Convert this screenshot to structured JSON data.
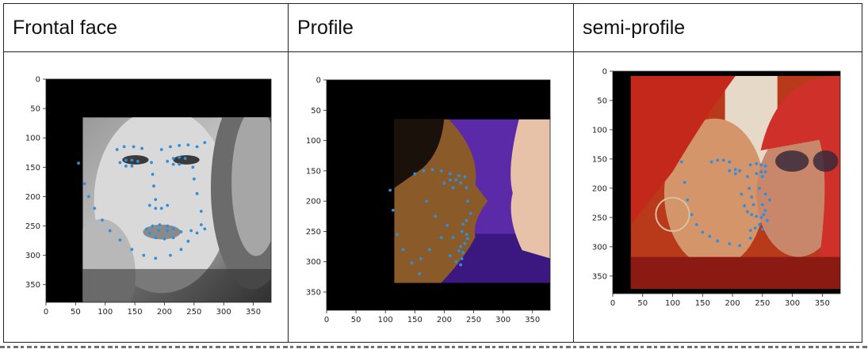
{
  "headers": [
    "Frontal face",
    "Profile",
    "semi-profile"
  ],
  "plots": [
    {
      "name": "frontal-face-plot",
      "ticks": [
        0,
        50,
        100,
        150,
        200,
        250,
        300,
        350
      ],
      "xlim": [
        0,
        380
      ],
      "ylim": [
        0,
        380
      ],
      "photo": {
        "x0": 62,
        "x1": 380,
        "y0": 65,
        "y1": 380
      },
      "photo_style": "grayscale",
      "landmarks": [
        [
          55,
          143
        ],
        [
          65,
          178
        ],
        [
          72,
          200
        ],
        [
          82,
          220
        ],
        [
          95,
          240
        ],
        [
          108,
          258
        ],
        [
          125,
          274
        ],
        [
          145,
          290
        ],
        [
          165,
          300
        ],
        [
          185,
          305
        ],
        [
          210,
          300
        ],
        [
          228,
          290
        ],
        [
          240,
          276
        ],
        [
          120,
          120
        ],
        [
          132,
          115
        ],
        [
          148,
          115
        ],
        [
          162,
          118
        ],
        [
          195,
          120
        ],
        [
          210,
          115
        ],
        [
          225,
          113
        ],
        [
          240,
          112
        ],
        [
          255,
          115
        ],
        [
          268,
          108
        ],
        [
          125,
          142
        ],
        [
          135,
          138
        ],
        [
          145,
          138
        ],
        [
          155,
          140
        ],
        [
          145,
          148
        ],
        [
          135,
          148
        ],
        [
          205,
          140
        ],
        [
          215,
          135
        ],
        [
          225,
          133
        ],
        [
          235,
          135
        ],
        [
          225,
          145
        ],
        [
          215,
          145
        ],
        [
          178,
          142
        ],
        [
          180,
          162
        ],
        [
          182,
          182
        ],
        [
          185,
          205
        ],
        [
          175,
          215
        ],
        [
          185,
          220
        ],
        [
          195,
          220
        ],
        [
          205,
          215
        ],
        [
          170,
          255
        ],
        [
          180,
          250
        ],
        [
          192,
          248
        ],
        [
          205,
          250
        ],
        [
          215,
          255
        ],
        [
          228,
          260
        ],
        [
          215,
          270
        ],
        [
          200,
          272
        ],
        [
          185,
          270
        ],
        [
          175,
          262
        ],
        [
          190,
          258
        ],
        [
          205,
          258
        ],
        [
          248,
          150
        ],
        [
          250,
          170
        ],
        [
          255,
          195
        ],
        [
          262,
          225
        ],
        [
          268,
          255
        ],
        [
          245,
          258
        ],
        [
          255,
          262
        ],
        [
          262,
          248
        ]
      ]
    },
    {
      "name": "profile-plot",
      "ticks": [
        0,
        50,
        100,
        150,
        200,
        250,
        300,
        350
      ],
      "xlim": [
        0,
        380
      ],
      "ylim": [
        0,
        380
      ],
      "photo": {
        "x0": 115,
        "x1": 380,
        "y0": 65,
        "y1": 335
      },
      "photo_style": "profile",
      "landmarks": [
        [
          108,
          182
        ],
        [
          113,
          215
        ],
        [
          120,
          255
        ],
        [
          130,
          280
        ],
        [
          145,
          302
        ],
        [
          158,
          320
        ],
        [
          150,
          155
        ],
        [
          165,
          150
        ],
        [
          180,
          148
        ],
        [
          195,
          150
        ],
        [
          210,
          155
        ],
        [
          225,
          158
        ],
        [
          200,
          170
        ],
        [
          210,
          165
        ],
        [
          220,
          165
        ],
        [
          228,
          170
        ],
        [
          215,
          178
        ],
        [
          235,
          160
        ],
        [
          238,
          178
        ],
        [
          240,
          200
        ],
        [
          245,
          220
        ],
        [
          238,
          232
        ],
        [
          232,
          238
        ],
        [
          230,
          250
        ],
        [
          238,
          255
        ],
        [
          240,
          262
        ],
        [
          235,
          270
        ],
        [
          228,
          275
        ],
        [
          232,
          285
        ],
        [
          210,
          290
        ],
        [
          220,
          300
        ],
        [
          228,
          305
        ],
        [
          230,
          295
        ],
        [
          225,
          282
        ],
        [
          170,
          200
        ],
        [
          185,
          225
        ],
        [
          195,
          260
        ],
        [
          175,
          280
        ],
        [
          160,
          295
        ],
        [
          205,
          240
        ],
        [
          215,
          260
        ]
      ]
    },
    {
      "name": "semi-profile-plot",
      "ticks": [
        0,
        50,
        100,
        150,
        200,
        250,
        300,
        350
      ],
      "xlim": [
        0,
        380
      ],
      "ylim": [
        0,
        380
      ],
      "photo": {
        "x0": 30,
        "x1": 380,
        "y0": 8,
        "y1": 372
      },
      "photo_style": "color",
      "landmarks": [
        [
          115,
          155
        ],
        [
          120,
          190
        ],
        [
          125,
          220
        ],
        [
          132,
          245
        ],
        [
          140,
          262
        ],
        [
          150,
          275
        ],
        [
          162,
          282
        ],
        [
          175,
          290
        ],
        [
          195,
          295
        ],
        [
          212,
          298
        ],
        [
          165,
          155
        ],
        [
          175,
          152
        ],
        [
          185,
          152
        ],
        [
          195,
          155
        ],
        [
          230,
          160
        ],
        [
          240,
          158
        ],
        [
          248,
          160
        ],
        [
          255,
          162
        ],
        [
          195,
          170
        ],
        [
          205,
          168
        ],
        [
          212,
          170
        ],
        [
          205,
          175
        ],
        [
          240,
          175
        ],
        [
          248,
          172
        ],
        [
          255,
          172
        ],
        [
          250,
          180
        ],
        [
          225,
          180
        ],
        [
          228,
          200
        ],
        [
          232,
          215
        ],
        [
          235,
          228
        ],
        [
          225,
          240
        ],
        [
          232,
          245
        ],
        [
          240,
          248
        ],
        [
          248,
          250
        ],
        [
          252,
          245
        ],
        [
          255,
          238
        ],
        [
          250,
          228
        ],
        [
          245,
          262
        ],
        [
          238,
          268
        ],
        [
          230,
          272
        ],
        [
          215,
          210
        ],
        [
          220,
          230
        ],
        [
          245,
          200
        ],
        [
          255,
          210
        ],
        [
          262,
          220
        ],
        [
          258,
          255
        ],
        [
          250,
          270
        ],
        [
          230,
          285
        ]
      ]
    }
  ]
}
